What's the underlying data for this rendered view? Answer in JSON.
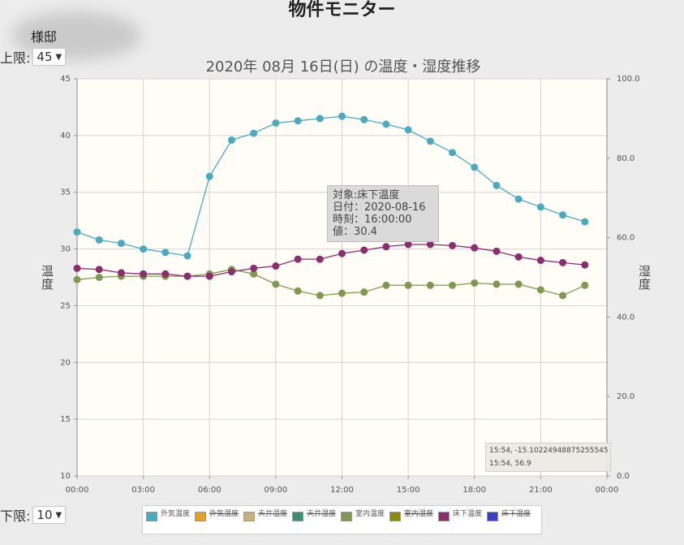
{
  "page": {
    "title": "物件モニター",
    "owner_name": "様邸"
  },
  "controls": {
    "upper_label": "上限:",
    "upper_value": "45",
    "lower_label": "下限:",
    "lower_value": "10"
  },
  "chart_data": {
    "type": "line",
    "title": "2020年 08月 16日(日) の温度・湿度推移",
    "ylabel": "温度",
    "y2label": "湿度",
    "ylim": [
      10,
      45
    ],
    "y2lim": [
      0,
      100
    ],
    "yticks": [
      "10",
      "15",
      "20",
      "25",
      "30",
      "35",
      "40",
      "45"
    ],
    "y2ticks": [
      "0.0",
      "20.0",
      "40.0",
      "60.0",
      "80.0",
      "100.0"
    ],
    "xticks": [
      "00:00",
      "03:00",
      "06:00",
      "09:00",
      "12:00",
      "15:00",
      "18:00",
      "21:00",
      "00:00"
    ],
    "x_hours": [
      0,
      1,
      2,
      3,
      4,
      5,
      6,
      7,
      8,
      9,
      10,
      11,
      12,
      13,
      14,
      15,
      16,
      17,
      18,
      19,
      20,
      21,
      22,
      23
    ],
    "grid": true,
    "legend_position": "bottom",
    "series": [
      {
        "name": "外気温度",
        "color": "#4aaac0",
        "visible": true,
        "values": [
          31.5,
          30.8,
          30.5,
          30.0,
          29.7,
          29.4,
          36.4,
          39.6,
          40.2,
          41.1,
          41.3,
          41.5,
          41.7,
          41.4,
          41.0,
          40.5,
          39.5,
          38.5,
          37.2,
          35.6,
          34.4,
          33.7,
          33.0,
          32.4
        ]
      },
      {
        "name": "外気湿度",
        "color": "#e8a020",
        "visible": false,
        "values": []
      },
      {
        "name": "天井温度",
        "color": "#c8b07a",
        "visible": false,
        "values": []
      },
      {
        "name": "天井湿度",
        "color": "#3d9070",
        "visible": false,
        "values": []
      },
      {
        "name": "室内温度",
        "color": "#7f9a50",
        "visible": true,
        "values": [
          27.3,
          27.5,
          27.6,
          27.6,
          27.6,
          27.6,
          27.8,
          28.2,
          27.8,
          26.9,
          26.3,
          25.9,
          26.1,
          26.2,
          26.8,
          26.8,
          26.8,
          26.8,
          27.0,
          26.9,
          26.9,
          26.4,
          25.9,
          26.8
        ]
      },
      {
        "name": "室内湿度",
        "color": "#8a8a10",
        "visible": false,
        "values": []
      },
      {
        "name": "床下温度",
        "color": "#8a2e6e",
        "visible": true,
        "values": [
          28.3,
          28.2,
          27.9,
          27.8,
          27.8,
          27.6,
          27.6,
          28.0,
          28.3,
          28.5,
          29.1,
          29.1,
          29.6,
          29.9,
          30.2,
          30.4,
          30.4,
          30.3,
          30.1,
          29.8,
          29.3,
          29.0,
          28.8,
          28.6
        ]
      },
      {
        "name": "床下湿度",
        "color": "#3a40c8",
        "visible": false,
        "values": []
      }
    ],
    "tooltip": {
      "line1": "対象:床下温度",
      "line2": "日付：2020-08-16",
      "line3": "時刻：16:00:00",
      "line4": "値：30.4"
    },
    "cursor_readout": {
      "line1": "15:54, -15.10224948875255545",
      "line2": "15:54, 56.9"
    }
  }
}
